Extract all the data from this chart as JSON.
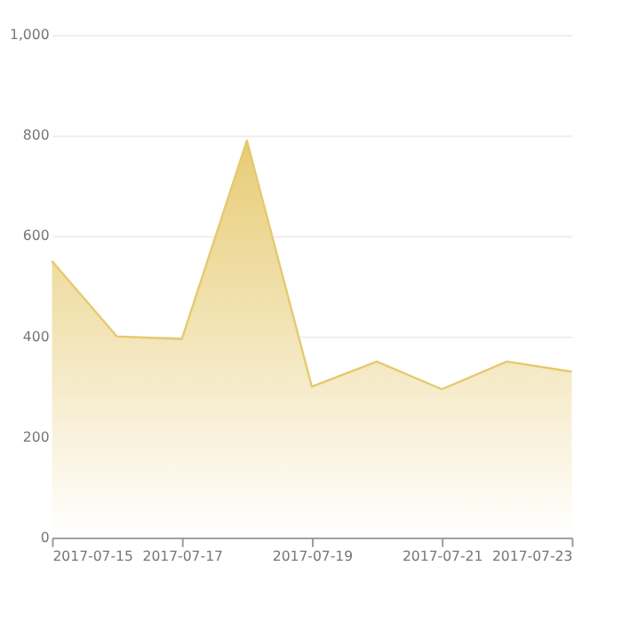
{
  "chart_data": {
    "type": "area",
    "x": [
      "2017-07-15",
      "2017-07-16",
      "2017-07-17",
      "2017-07-18",
      "2017-07-19",
      "2017-07-20",
      "2017-07-21",
      "2017-07-22",
      "2017-07-23"
    ],
    "series": [
      {
        "color": "#e6c96e",
        "values": [
          550,
          400,
          395,
          790,
          300,
          350,
          295,
          350,
          330
        ]
      }
    ],
    "xlim": [
      "2017-07-15",
      "2017-07-23"
    ],
    "xticks": [
      "2017-07-15",
      "2017-07-17",
      "2017-07-19",
      "2017-07-21",
      "2017-07-23"
    ],
    "ylim": [
      0,
      1000
    ],
    "yticks": [
      0,
      200,
      400,
      600,
      800,
      {
        "value": 1000,
        "label": "1,000"
      }
    ],
    "grid": "y"
  }
}
